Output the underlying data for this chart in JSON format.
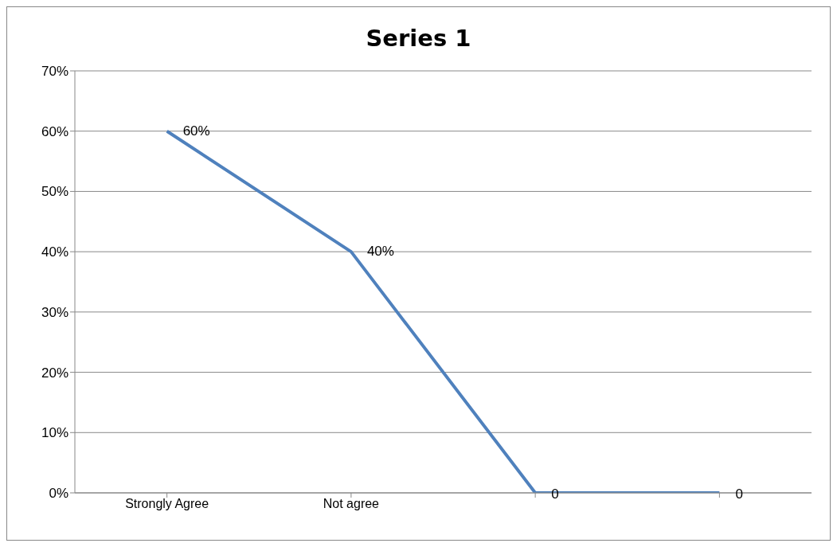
{
  "chart_data": {
    "type": "line",
    "title": "Series 1",
    "categories": [
      "Strongly Agree",
      "Not agree",
      null,
      null
    ],
    "values": [
      60,
      40,
      0,
      0
    ],
    "value_labels": [
      "60%",
      "40%",
      "0",
      "0"
    ],
    "color": "#4f81bd",
    "ylim": [
      0,
      70
    ],
    "yticks": [
      {
        "value": 0,
        "label": "0%"
      },
      {
        "value": 10,
        "label": "10%"
      },
      {
        "value": 20,
        "label": "20%"
      },
      {
        "value": 30,
        "label": "30%"
      },
      {
        "value": 40,
        "label": "40%"
      },
      {
        "value": 50,
        "label": "50%"
      },
      {
        "value": 60,
        "label": "60%"
      },
      {
        "value": 70,
        "label": "70%"
      }
    ],
    "grid": "y"
  }
}
